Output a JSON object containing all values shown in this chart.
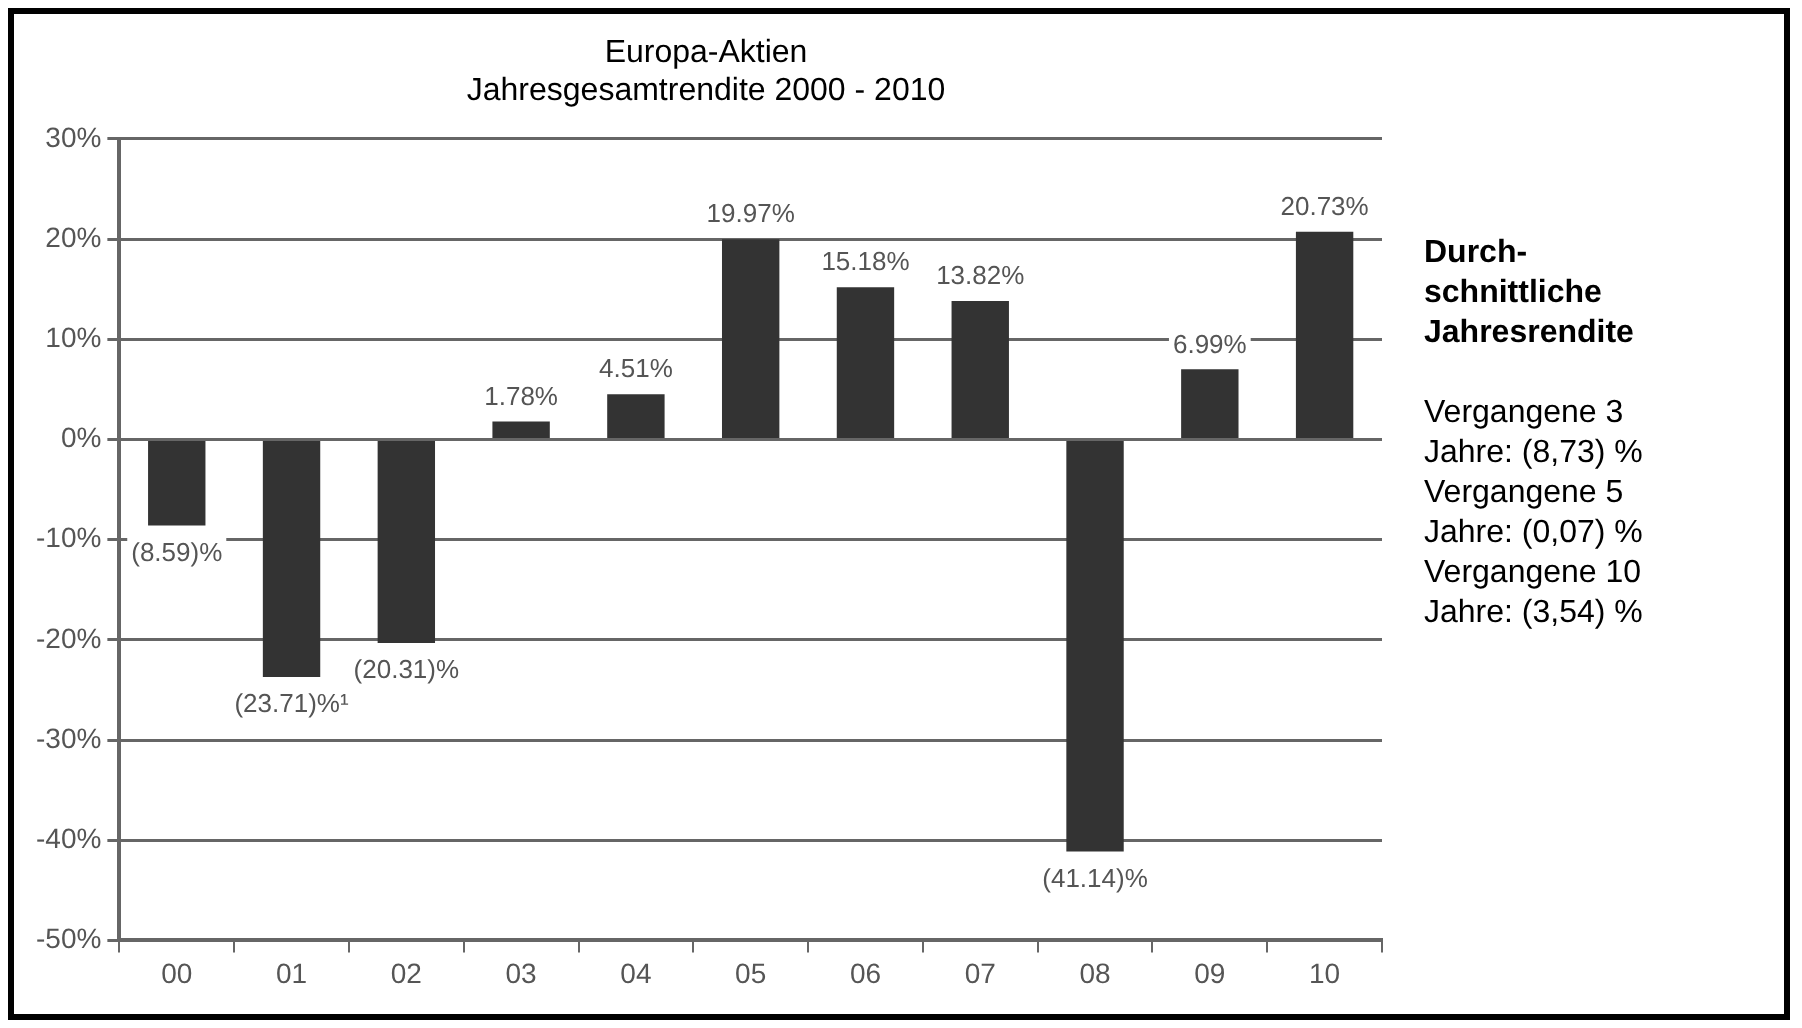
{
  "chart_data": {
    "type": "bar",
    "title": "Europa-Aktien",
    "subtitle": "Jahresgesamtrendite 2000 - 2010",
    "categories": [
      "00",
      "01",
      "02",
      "03",
      "04",
      "05",
      "06",
      "07",
      "08",
      "09",
      "10"
    ],
    "values": [
      -8.59,
      -23.71,
      -20.31,
      1.78,
      4.51,
      19.97,
      15.18,
      13.82,
      -41.14,
      6.99,
      20.73
    ],
    "value_labels": [
      "(8.59)%",
      "(23.71)%¹",
      "(20.31)%",
      "1.78%",
      "4.51%",
      "19.97%",
      "15.18%",
      "13.82%",
      "(41.14)%",
      "6.99%",
      "20.73%"
    ],
    "color": "#333333",
    "ylim": [
      -50,
      30
    ],
    "yticks": [
      {
        "value": -50,
        "label": "-50%"
      },
      {
        "value": -40,
        "label": "-40%"
      },
      {
        "value": -30,
        "label": "-30%"
      },
      {
        "value": -20,
        "label": "-20%"
      },
      {
        "value": -10,
        "label": "-10%"
      },
      {
        "value": 0,
        "label": "0%"
      },
      {
        "value": 10,
        "label": "10%"
      },
      {
        "value": 20,
        "label": "20%"
      },
      {
        "value": 30,
        "label": "30%"
      }
    ],
    "grid": "y",
    "annotations": [
      "Durch-schnittliche Jahresrendite",
      "Vergangene 3 Jahre: (8,73) %",
      "Vergangene 5 Jahre: (0,07) %",
      "Vergangene 10 Jahre: (3,54) %"
    ]
  }
}
